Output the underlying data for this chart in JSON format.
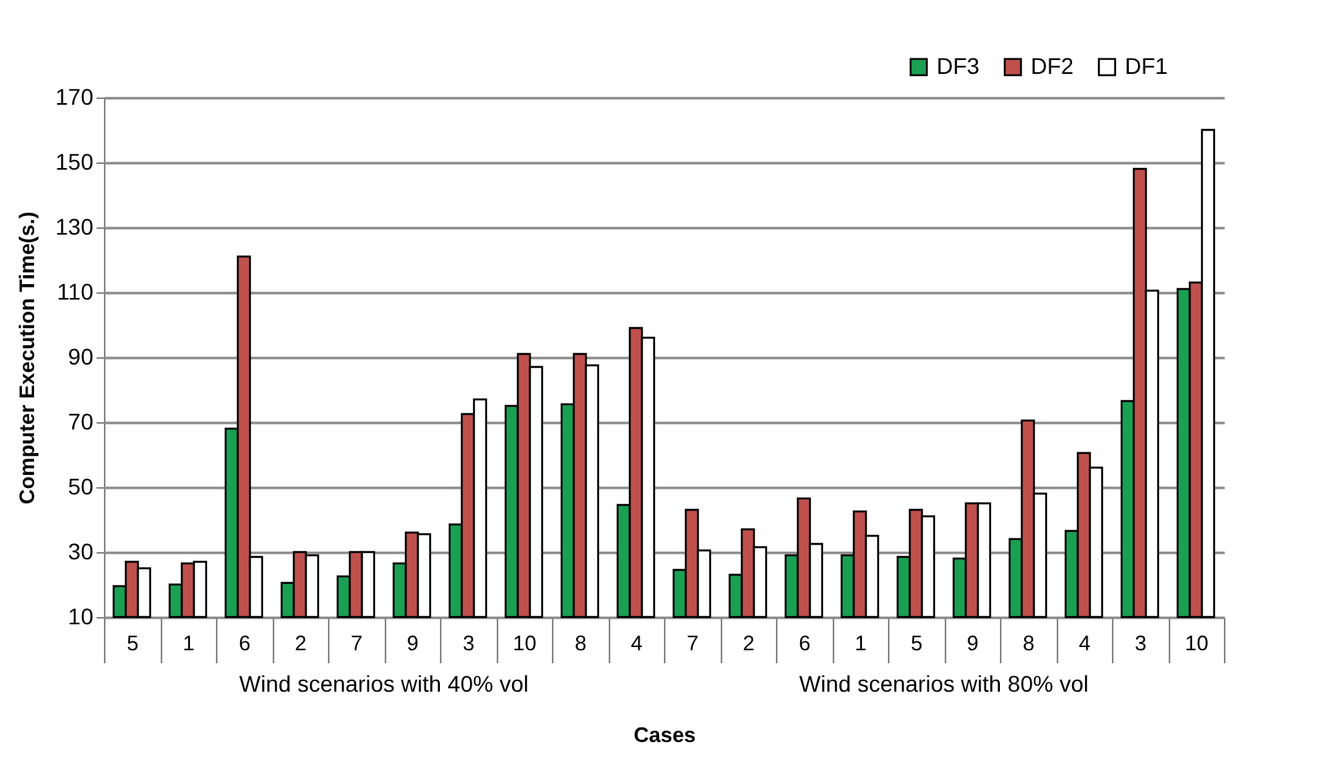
{
  "chart_data": {
    "type": "bar",
    "xlabel": "Cases",
    "ylabel": "Computer Execution Time(s.)",
    "categories": [
      "5",
      "1",
      "6",
      "2",
      "7",
      "9",
      "3",
      "10",
      "8",
      "4",
      "7",
      "2",
      "6",
      "1",
      "5",
      "9",
      "8",
      "4",
      "3",
      "10"
    ],
    "series": [
      {
        "name": "DF3",
        "color": "#1aa053",
        "values": [
          19.5,
          20,
          68,
          20.5,
          22.5,
          26.5,
          38.5,
          75,
          75.5,
          44.5,
          24.5,
          23,
          29,
          29,
          28.5,
          28,
          34,
          36.5,
          76.5,
          111
        ]
      },
      {
        "name": "DF2",
        "color": "#c0504d",
        "values": [
          27,
          26.5,
          121,
          30,
          30,
          36,
          72.5,
          91,
          91,
          99,
          43,
          37,
          46.5,
          42.5,
          43,
          45,
          70.5,
          60.5,
          148,
          113
        ]
      },
      {
        "name": "DF1",
        "color": "#ffffff",
        "values": [
          25,
          27,
          28.5,
          29,
          30,
          35.5,
          77,
          87,
          87.5,
          96,
          30.5,
          31.5,
          32.5,
          35,
          41,
          45,
          48,
          56,
          110.5,
          160
        ]
      }
    ],
    "ylim": [
      10,
      170
    ],
    "yticks": [
      10,
      30,
      50,
      70,
      90,
      110,
      130,
      150,
      170
    ],
    "grid": "y",
    "legend": "top right",
    "annotations": [
      "Wind scenarios with 40% vol",
      "Wind scenarios with 80% vol"
    ]
  }
}
